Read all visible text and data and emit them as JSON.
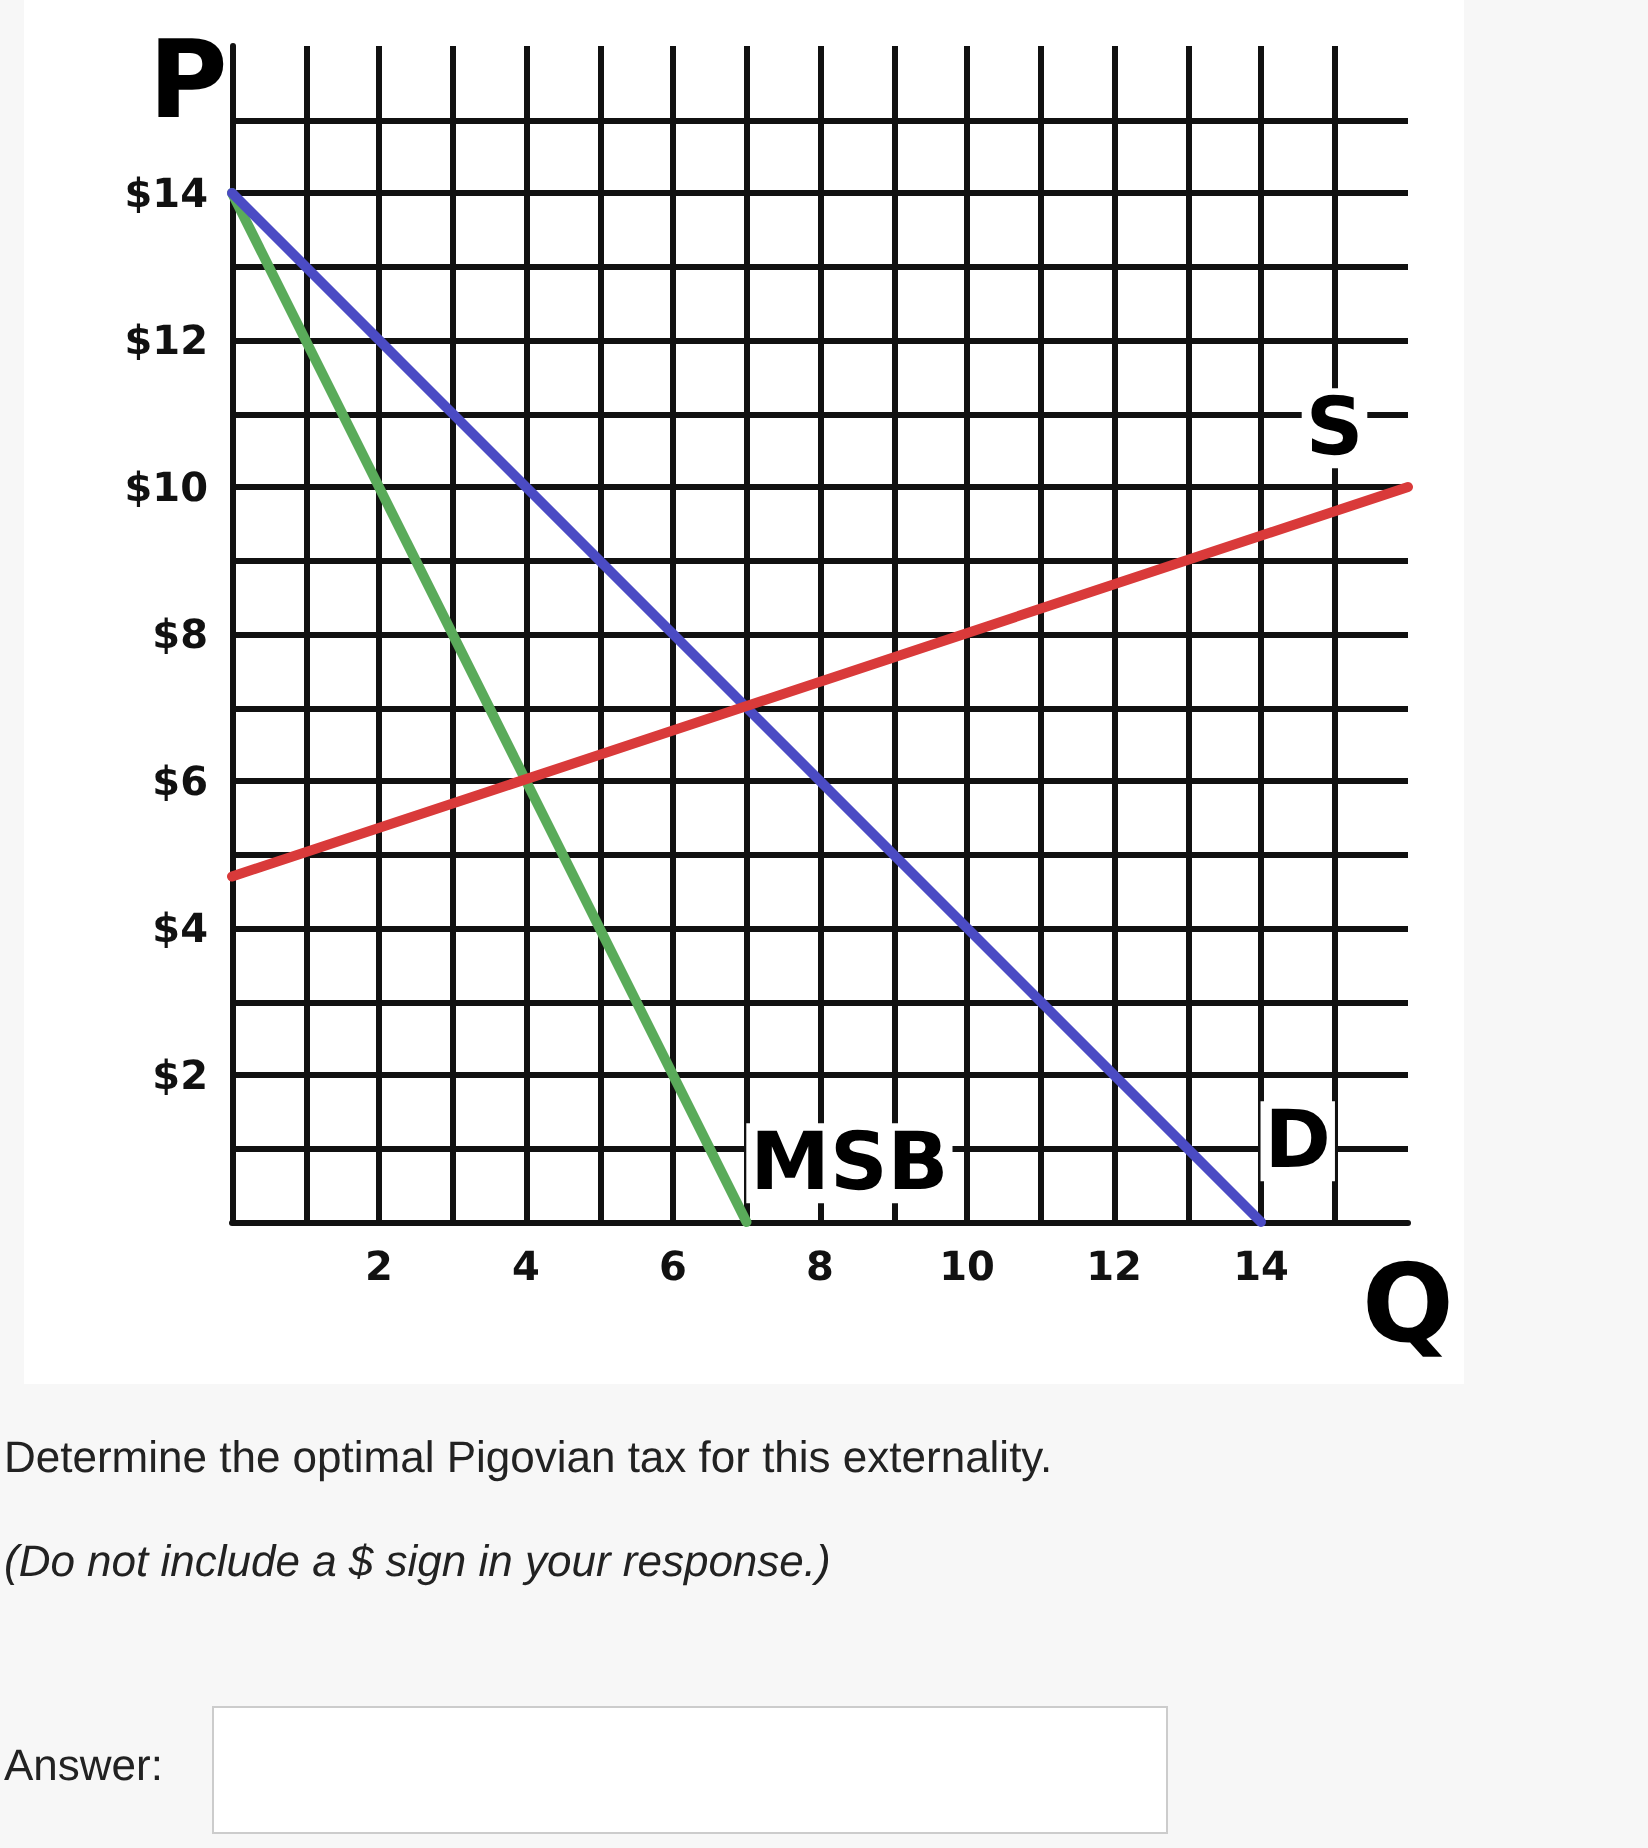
{
  "chart_data": {
    "type": "line",
    "xlabel": "Q",
    "ylabel": "P",
    "xlim": [
      0,
      16
    ],
    "ylim": [
      0,
      16
    ],
    "xticks": [
      2,
      4,
      6,
      8,
      10,
      12,
      14
    ],
    "yticks": [
      {
        "value": 2,
        "label": "$2"
      },
      {
        "value": 4,
        "label": "$4"
      },
      {
        "value": 6,
        "label": "$6"
      },
      {
        "value": 8,
        "label": "$8"
      },
      {
        "value": 10,
        "label": "$10"
      },
      {
        "value": 12,
        "label": "$12"
      },
      {
        "value": 14,
        "label": "$14"
      }
    ],
    "grid": true,
    "marker": "none",
    "line_style": "solid",
    "series": [
      {
        "name": "MSB",
        "color": "#5aab5a",
        "x": [
          0,
          7
        ],
        "values": [
          14,
          0
        ]
      },
      {
        "name": "D",
        "color": "#4b4bc4",
        "x": [
          0,
          14
        ],
        "values": [
          14,
          0
        ]
      },
      {
        "name": "S",
        "color": "#d93a3a",
        "x": [
          0,
          16
        ],
        "values": [
          4.7,
          10
        ]
      }
    ],
    "annotations": [
      "Determine the optimal Pigovian tax for this externality.",
      "(Do not include a $ sign in your response.)",
      "Answer:"
    ]
  }
}
